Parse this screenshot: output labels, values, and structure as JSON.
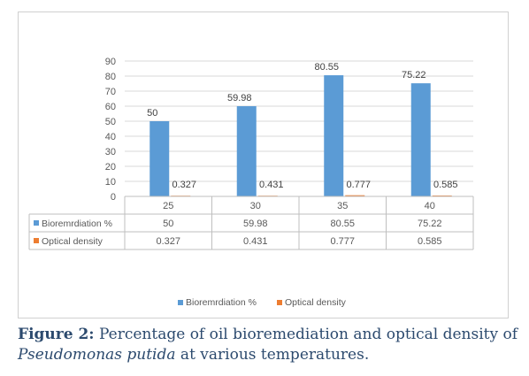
{
  "chart_data": {
    "type": "bar",
    "categories": [
      "25",
      "30",
      "35",
      "40"
    ],
    "series": [
      {
        "name": "Bioremrdiation %",
        "values": [
          50,
          59.98,
          80.55,
          75.22
        ],
        "color": "#5b9bd5"
      },
      {
        "name": "Optical density",
        "values": [
          0.327,
          0.431,
          0.777,
          0.585
        ],
        "color": "#ed7d31"
      }
    ],
    "data_labels": [
      [
        "50",
        "59.98",
        "80.55",
        "75.22"
      ],
      [
        "0.327",
        "0.431",
        "0.777",
        "0.585"
      ]
    ],
    "yticks": [
      "0",
      "10",
      "20",
      "30",
      "40",
      "50",
      "60",
      "70",
      "80",
      "90"
    ],
    "ylim": [
      0,
      90
    ],
    "grid": true,
    "legend_position": "bottom",
    "data_table": true
  },
  "caption": {
    "label": "Figure 2:",
    "text": " Percentage of oil bioremediation and optical density of",
    "species": "Pseudomonas putida",
    "suffix": " at various temperatures."
  }
}
